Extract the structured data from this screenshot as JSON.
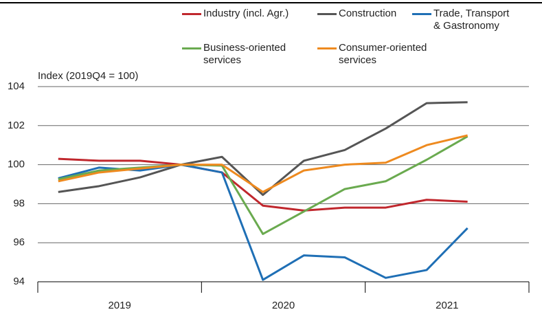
{
  "chart_data": {
    "type": "line",
    "y_label": "Index (2019Q4 = 100)",
    "categories": [
      null,
      null,
      null,
      null,
      null,
      null,
      null,
      null,
      null,
      null,
      null
    ],
    "x_groups": [
      "2019",
      "2020",
      "2021"
    ],
    "series": [
      {
        "name": "Industry (incl. Agr.)",
        "color": "#c0272d",
        "values": [
          100.3,
          100.2,
          100.2,
          100.0,
          99.6,
          97.9,
          97.65,
          97.8,
          97.8,
          98.2,
          98.1
        ]
      },
      {
        "name": "Construction",
        "color": "#555555",
        "values": [
          98.6,
          98.9,
          99.35,
          100.0,
          100.4,
          98.45,
          100.2,
          100.75,
          101.85,
          103.15,
          103.2
        ]
      },
      {
        "name": "Trade, Transport & Gastronomy",
        "color": "#1f6fb5",
        "values": [
          99.3,
          99.85,
          99.7,
          100.0,
          99.6,
          94.1,
          95.35,
          95.25,
          94.2,
          94.6,
          96.75
        ]
      },
      {
        "name": "Business-oriented services",
        "color": "#6aaa4f",
        "values": [
          99.25,
          99.7,
          99.85,
          100.0,
          99.95,
          96.45,
          97.6,
          98.75,
          99.15,
          100.25,
          101.45
        ]
      },
      {
        "name": "Consumer-oriented services",
        "color": "#ee8a1f",
        "values": [
          99.15,
          99.6,
          99.8,
          100.0,
          100.0,
          98.6,
          99.7,
          100.0,
          100.1,
          101.0,
          101.5
        ]
      }
    ],
    "ylim": [
      94,
      104
    ],
    "yticks": [
      94,
      96,
      98,
      100,
      102,
      104
    ],
    "grid": true
  }
}
